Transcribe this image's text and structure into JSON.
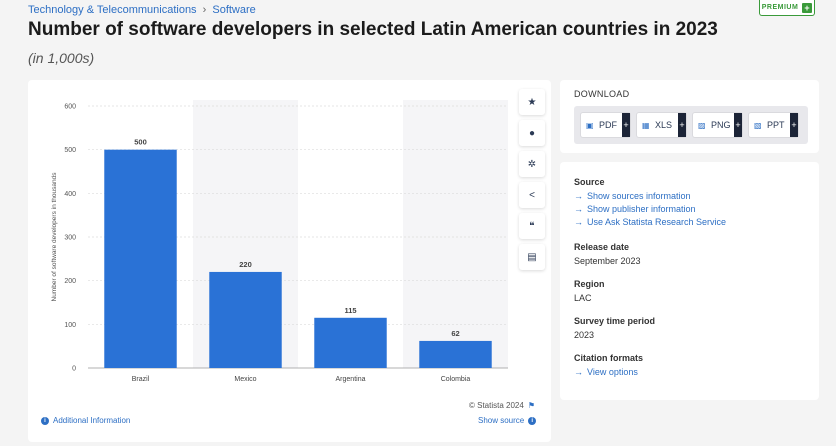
{
  "breadcrumb": {
    "category": "Technology & Telecommunications",
    "separator": "›",
    "subcategory": "Software"
  },
  "premium": {
    "label": "PREMIUM",
    "plus": "+"
  },
  "page": {
    "title": "Number of software developers in selected Latin American countries in 2023",
    "subtitle": "(in 1,000s)"
  },
  "chart_data": {
    "type": "bar",
    "categories": [
      "Brazil",
      "Mexico",
      "Argentina",
      "Colombia"
    ],
    "values": [
      500,
      220,
      115,
      62
    ],
    "title": "",
    "xlabel": "",
    "ylabel": "Number of software developers in thousands",
    "ylim": [
      0,
      600
    ],
    "yticks": [
      0,
      100,
      200,
      300,
      400,
      500,
      600
    ],
    "bar_color": "#2a72d6",
    "data_labels": true,
    "grid": true,
    "legend": "none"
  },
  "toolbar": {
    "items": [
      {
        "name": "favorite-icon",
        "glyph": "★"
      },
      {
        "name": "notification-bell-icon",
        "glyph": "●"
      },
      {
        "name": "settings-gear-icon",
        "glyph": "✲"
      },
      {
        "name": "share-icon",
        "glyph": "<"
      },
      {
        "name": "quote-citation-icon",
        "glyph": "❝"
      },
      {
        "name": "print-icon",
        "glyph": "▤"
      }
    ]
  },
  "chart_footer": {
    "additional_info": "Additional Information",
    "copyright": "© Statista 2024",
    "show_source": "Show source",
    "info_glyph": "i",
    "flag_glyph": "⚑"
  },
  "download": {
    "title": "DOWNLOAD",
    "buttons": [
      {
        "label": "PDF",
        "plus": "+"
      },
      {
        "label": "XLS",
        "plus": "+"
      },
      {
        "label": "PNG",
        "plus": "+"
      },
      {
        "label": "PPT",
        "plus": "+"
      }
    ]
  },
  "meta": {
    "source_label": "Source",
    "source_links": [
      "Show sources information",
      "Show publisher information",
      "Use Ask Statista Research Service"
    ],
    "release_label": "Release date",
    "release_value": "September 2023",
    "region_label": "Region",
    "region_value": "LAC",
    "survey_label": "Survey time period",
    "survey_value": "2023",
    "citation_label": "Citation formats",
    "citation_link": "View options"
  },
  "colors": {
    "link": "#2d6fc4",
    "bar": "#2a72d6",
    "premium": "#3a9a3a",
    "dark_plus": "#1c2437"
  }
}
